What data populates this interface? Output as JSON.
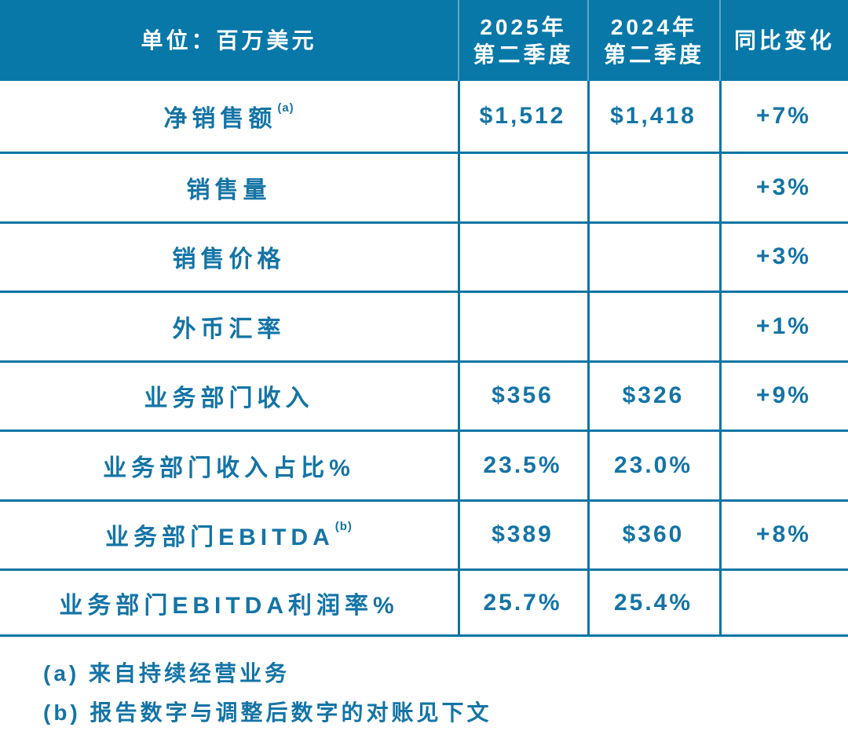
{
  "colors": {
    "header_background": "#0878A8",
    "grid_line": "#0C74A4",
    "text_blue": "#1474A6",
    "header_text": "#FFFFFF"
  },
  "table": {
    "header": {
      "unit_label": "单位：百万美元",
      "col_2025": "2025年\n第二季度",
      "col_2024": "2024年\n第二季度",
      "col_yoy": "同比变化"
    },
    "rows": [
      {
        "label": "净销售额",
        "sup": "(a)",
        "q2_2025": "$1,512",
        "q2_2024": "$1,418",
        "yoy": "+7%"
      },
      {
        "label": "销售量",
        "sup": "",
        "q2_2025": "",
        "q2_2024": "",
        "yoy": "+3%"
      },
      {
        "label": "销售价格",
        "sup": "",
        "q2_2025": "",
        "q2_2024": "",
        "yoy": "+3%"
      },
      {
        "label": "外币汇率",
        "sup": "",
        "q2_2025": "",
        "q2_2024": "",
        "yoy": "+1%"
      },
      {
        "label": "业务部门收入",
        "sup": "",
        "q2_2025": "$356",
        "q2_2024": "$326",
        "yoy": "+9%"
      },
      {
        "label": "业务部门收入占比%",
        "sup": "",
        "q2_2025": "23.5%",
        "q2_2024": "23.0%",
        "yoy": ""
      },
      {
        "label": "业务部门EBITDA",
        "sup": "(b)",
        "q2_2025": "$389",
        "q2_2024": "$360",
        "yoy": "+8%"
      },
      {
        "label": "业务部门EBITDA利润率%",
        "sup": "",
        "q2_2025": "25.7%",
        "q2_2024": "25.4%",
        "yoy": ""
      }
    ],
    "footnotes": [
      "(a) 来自持续经营业务",
      "(b) 报告数字与调整后数字的对账见下文"
    ]
  }
}
